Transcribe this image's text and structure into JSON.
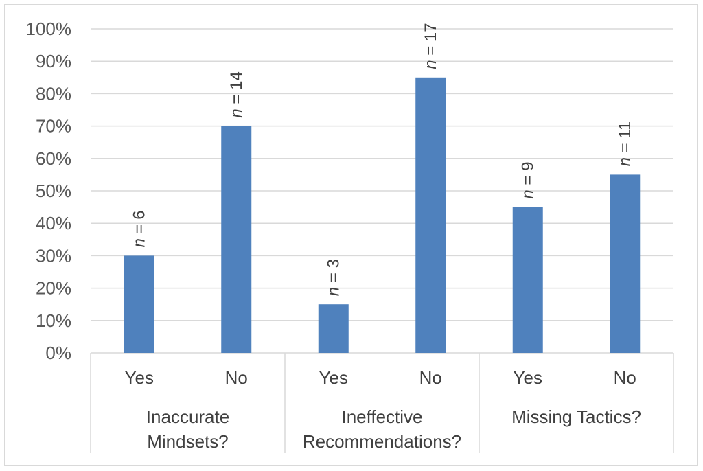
{
  "chart_data": {
    "type": "bar",
    "groups": [
      {
        "label_lines": [
          "Inaccurate",
          "Mindsets?"
        ],
        "categories": [
          "Yes",
          "No"
        ]
      },
      {
        "label_lines": [
          "Ineffective",
          "Recommendations?"
        ],
        "categories": [
          "Yes",
          "No"
        ]
      },
      {
        "label_lines": [
          "Missing Tactics?"
        ],
        "categories": [
          "Yes",
          "No"
        ]
      }
    ],
    "values": [
      30,
      70,
      15,
      85,
      45,
      55
    ],
    "data_labels": [
      {
        "n": "n",
        "eq": " = 6"
      },
      {
        "n": "n",
        "eq": " = 14"
      },
      {
        "n": "n",
        "eq": " = 3"
      },
      {
        "n": "n",
        "eq": " = 17"
      },
      {
        "n": "n",
        "eq": " = 9"
      },
      {
        "n": "n",
        "eq": " = 11"
      }
    ],
    "yticks": [
      "0%",
      "10%",
      "20%",
      "30%",
      "40%",
      "50%",
      "60%",
      "70%",
      "80%",
      "90%",
      "100%"
    ],
    "ylim": [
      0,
      100
    ],
    "bar_color": "#4f81bd",
    "grid": true,
    "title": "",
    "xlabel": "",
    "ylabel": ""
  }
}
